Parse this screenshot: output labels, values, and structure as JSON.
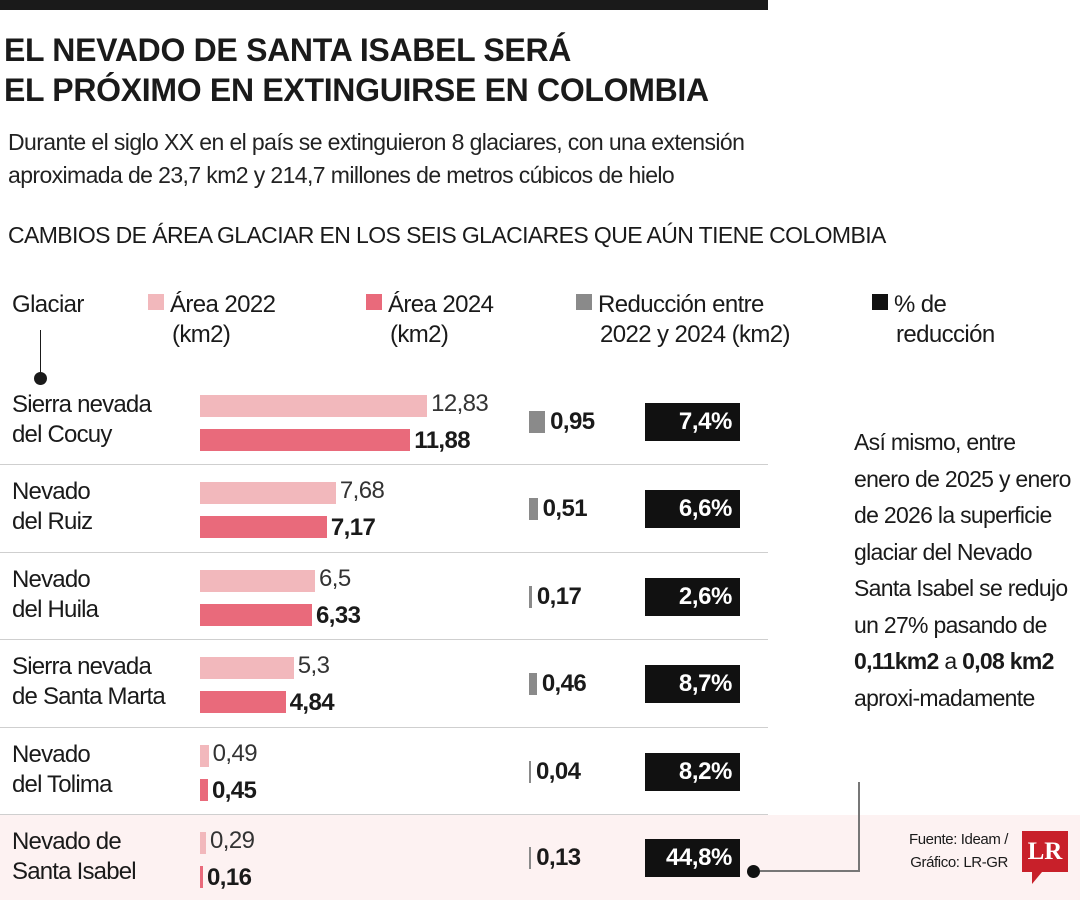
{
  "title": [
    "EL NEVADO DE SANTA ISABEL SERÁ",
    "EL PRÓXIMO EN EXTINGUIRSE EN COLOMBIA"
  ],
  "subtitle": [
    "Durante el siglo XX en el país se extinguieron 8 glaciares, con una extensión",
    "aproximada de 23,7 km2 y 214,7 millones de metros cúbicos de hielo"
  ],
  "chart_data": {
    "type": "bar",
    "title": "CAMBIOS DE ÁREA GLACIAR EN LOS SEIS GLACIARES QUE AÚN TIENE COLOMBIA",
    "column_header": "Glaciar",
    "legend": [
      {
        "label": [
          "Área 2022",
          "(km2)"
        ],
        "color": "#f2b8bc"
      },
      {
        "label": [
          "Área 2024",
          "(km2)"
        ],
        "color": "#e96a7b"
      },
      {
        "label": [
          "Reducción entre",
          "2022 y 2024 (km2)"
        ],
        "color": "#8a8a8a"
      },
      {
        "label": [
          "% de",
          "reducción"
        ],
        "color": "#111111"
      }
    ],
    "categories": [
      [
        "Sierra nevada",
        "del Cocuy"
      ],
      [
        "Nevado",
        "del Ruiz"
      ],
      [
        "Nevado",
        "del Huila"
      ],
      [
        "Sierra nevada",
        "de Santa Marta"
      ],
      [
        "Nevado",
        "del Tolima"
      ],
      [
        "Nevado de",
        "Santa Isabel"
      ]
    ],
    "series": [
      {
        "name": "Área 2022 (km2)",
        "values": [
          12.83,
          7.68,
          6.5,
          5.3,
          0.49,
          0.29
        ],
        "labels": [
          "12,83",
          "7,68",
          "6,5",
          "5,3",
          "0,49",
          "0,29"
        ]
      },
      {
        "name": "Área 2024 (km2)",
        "values": [
          11.88,
          7.17,
          6.33,
          4.84,
          0.45,
          0.16
        ],
        "labels": [
          "11,88",
          "7,17",
          "6,33",
          "4,84",
          "0,45",
          "0,16"
        ]
      },
      {
        "name": "Reducción entre 2022 y 2024 (km2)",
        "values": [
          0.95,
          0.51,
          0.17,
          0.46,
          0.04,
          0.13
        ],
        "labels": [
          "0,95",
          "0,51",
          "0,17",
          "0,46",
          "0,04",
          "0,13"
        ]
      },
      {
        "name": "% de reducción",
        "values": [
          7.4,
          6.6,
          2.6,
          8.7,
          8.2,
          44.8
        ],
        "labels": [
          "7,4%",
          "6,6%",
          "2,6%",
          "8,7%",
          "8,2%",
          "44,8%"
        ]
      }
    ],
    "highlight_row": 5
  },
  "note": {
    "text1": "Así mismo, entre enero de 2025 y enero de 2026 la superficie glaciar del Nevado Santa Isabel se redujo un 27% pasando de ",
    "bold1": "0,11km2",
    "text2": " a ",
    "bold2": "0,08 km2",
    "text3": " aproxi-madamente"
  },
  "source": [
    "Fuente: Ideam /",
    "Gráfico: LR-GR"
  ],
  "logo": "LR"
}
